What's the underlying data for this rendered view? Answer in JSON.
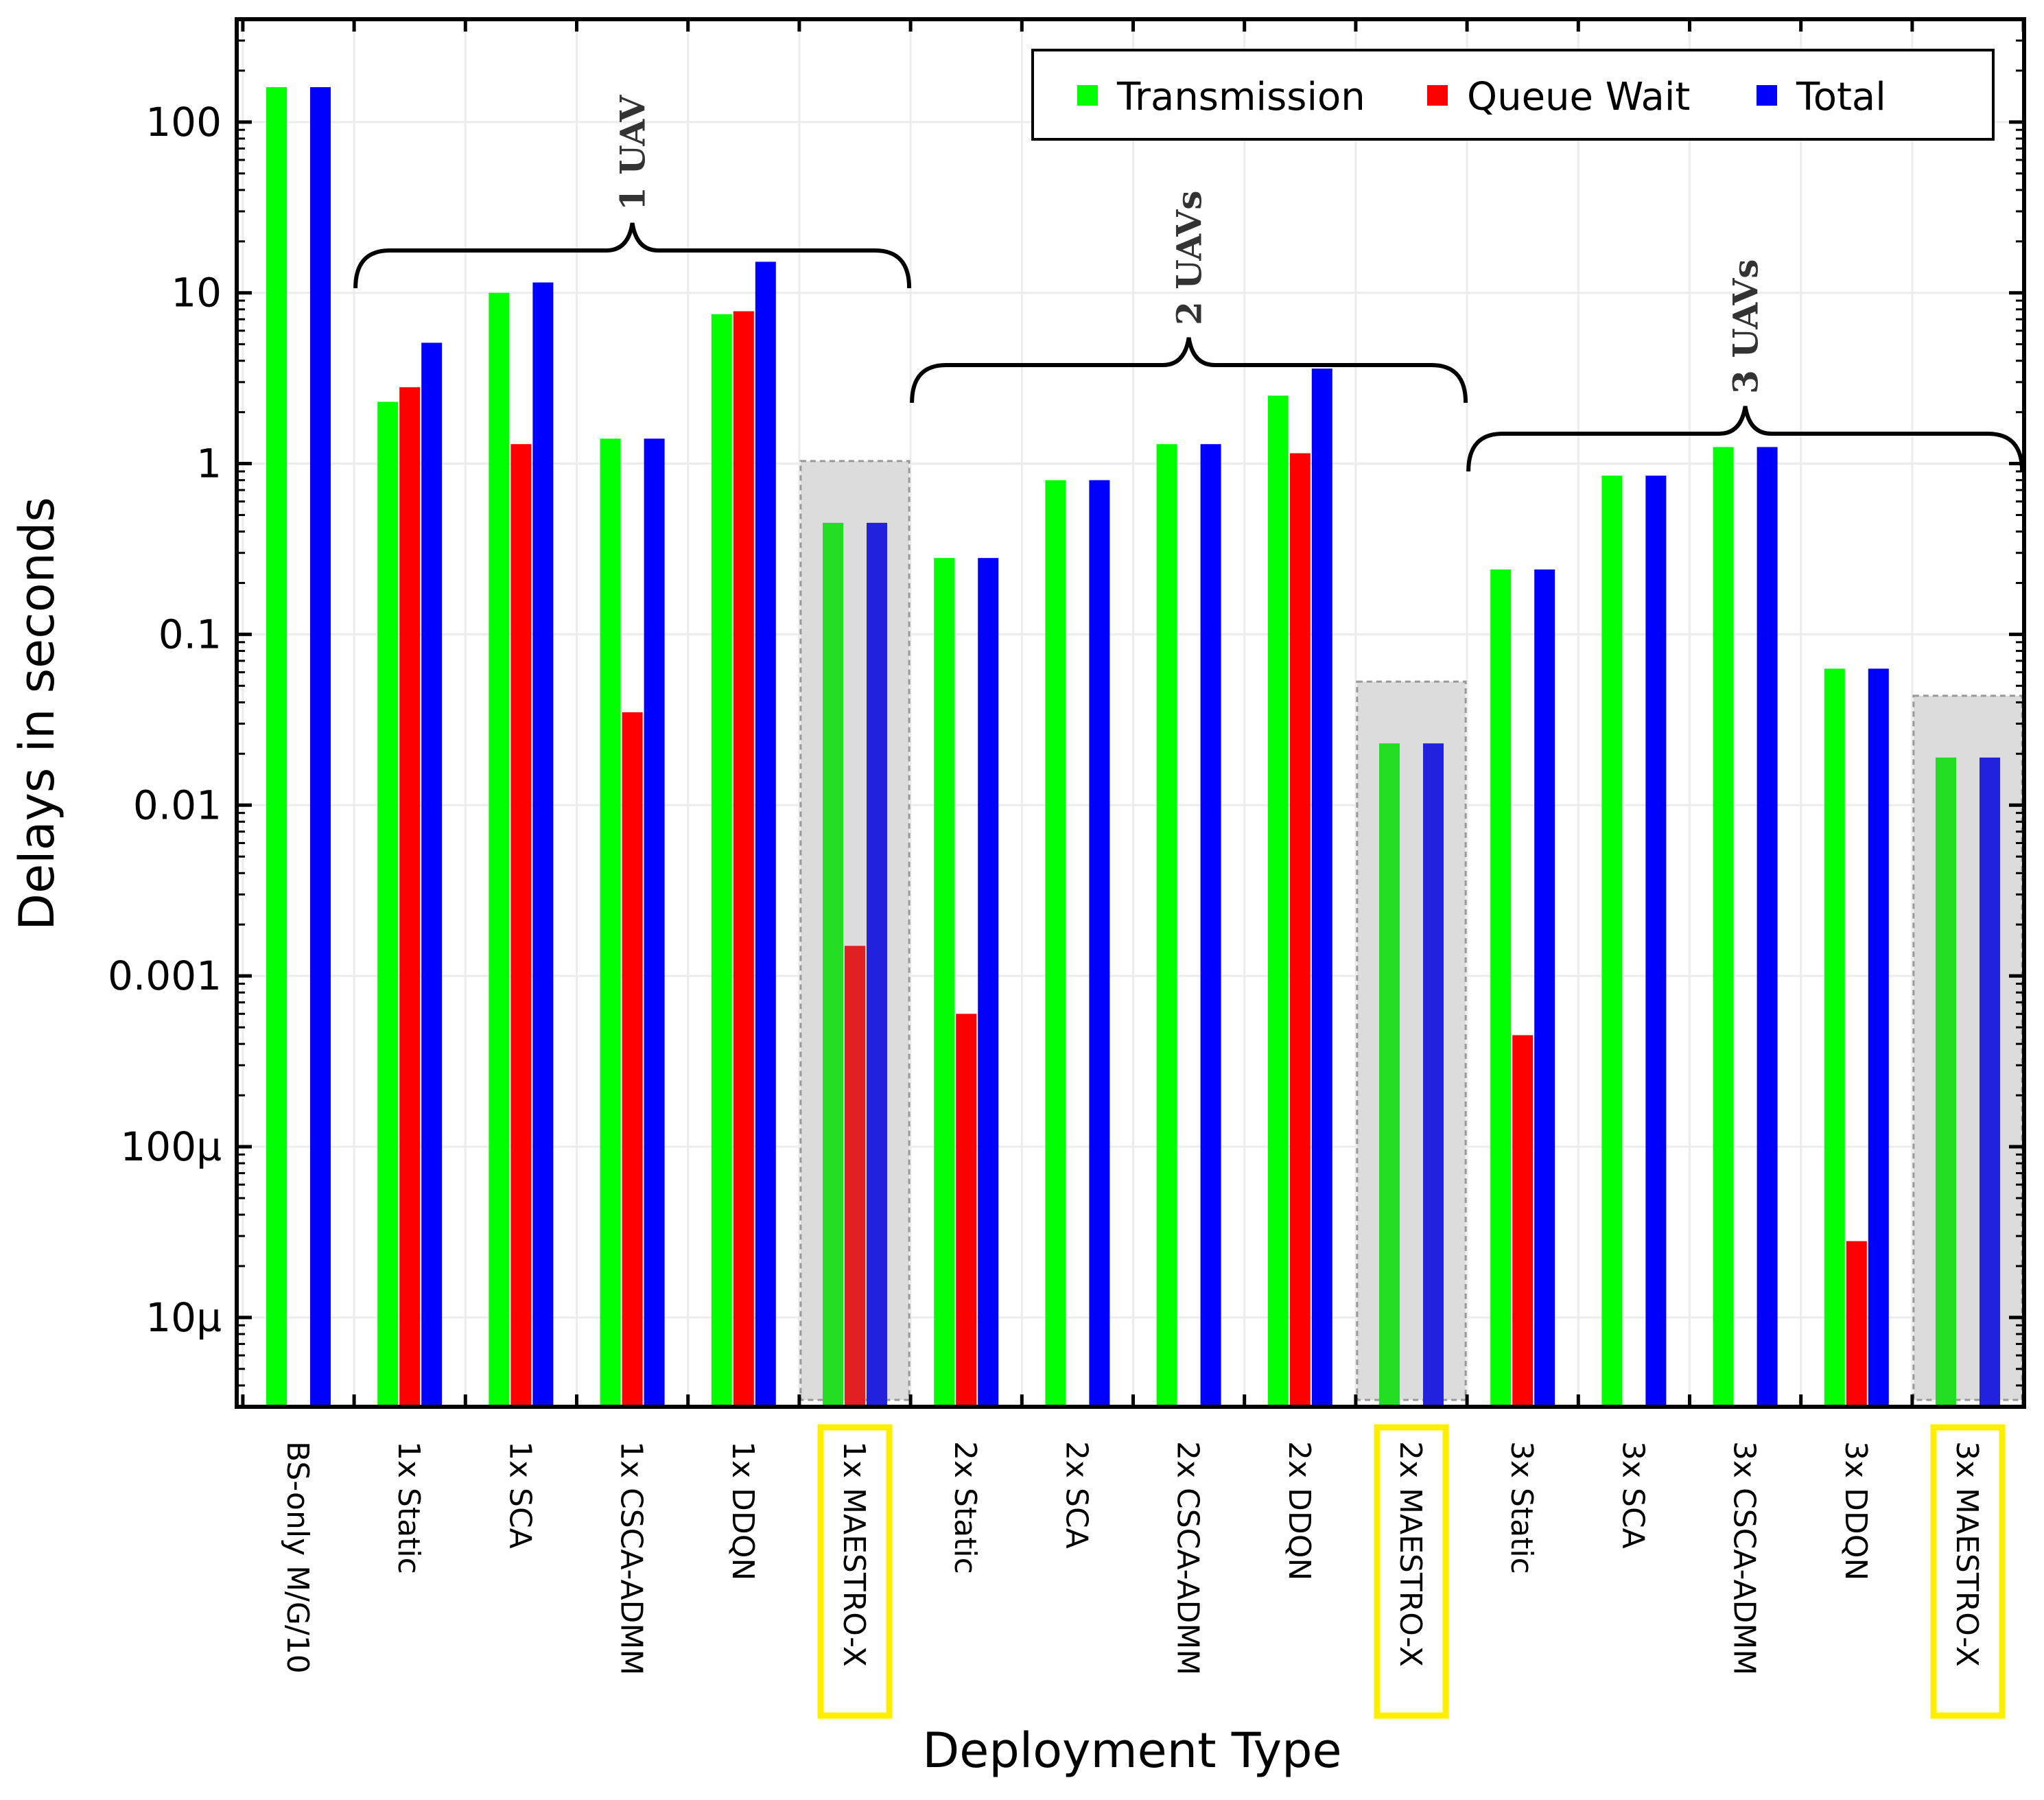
{
  "chart_data": {
    "type": "bar",
    "xlabel": "Deployment Type",
    "ylabel": "Delays in seconds",
    "yscale": "log",
    "ylim": [
      3e-06,
      400
    ],
    "yticks": [
      1e-05,
      0.0001,
      0.001,
      0.01,
      0.1,
      1,
      10,
      100
    ],
    "ytick_labels": [
      "10µ",
      "100µ",
      "0.001",
      "0.01",
      "0.1",
      "1",
      "10",
      "100"
    ],
    "categories": [
      "BS-only M/G/10",
      "1x Static",
      "1x SCA",
      "1x CSCA-ADMM",
      "1x DDQN",
      "1x MAESTRO-X",
      "2x Static",
      "2x SCA",
      "2x CSCA-ADMM",
      "2x DDQN",
      "2x MAESTRO-X",
      "3x Static",
      "3x SCA",
      "3x CSCA-ADMM",
      "3x DDQN",
      "3x MAESTRO-X"
    ],
    "series": [
      {
        "name": "Transmission",
        "color": "#00ff00",
        "values": [
          160,
          2.3,
          10,
          1.4,
          7.5,
          0.45,
          0.28,
          0.8,
          1.3,
          2.5,
          0.023,
          0.24,
          0.85,
          1.25,
          0.063,
          0.019
        ]
      },
      {
        "name": "Queue Wait",
        "color": "#ff0000",
        "values": [
          null,
          2.8,
          1.3,
          0.035,
          7.8,
          0.0015,
          0.0006,
          null,
          null,
          1.15,
          null,
          0.00045,
          null,
          null,
          2.8e-05,
          null
        ]
      },
      {
        "name": "Total",
        "color": "#0000ff",
        "values": [
          160,
          5.1,
          11.5,
          1.4,
          15.2,
          0.45,
          0.28,
          0.8,
          1.3,
          3.6,
          0.023,
          0.24,
          0.85,
          1.25,
          0.063,
          0.019
        ]
      }
    ],
    "legend_position": "top-right",
    "grid": true,
    "groups": [
      {
        "label": "1 UAV",
        "from": 1,
        "to": 5
      },
      {
        "label": "2 UAVs",
        "from": 6,
        "to": 10
      },
      {
        "label": "3 UAVs",
        "from": 11,
        "to": 15
      }
    ],
    "highlighted_categories": [
      5,
      10,
      15
    ],
    "highlight_box_color": "#ffee00",
    "shade_color": "#dcdcdc"
  }
}
